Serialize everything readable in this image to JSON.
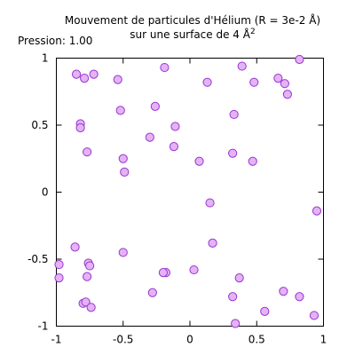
{
  "chart_data": {
    "type": "scatter",
    "title_line1": "Mouvement de particules d'Hélium (R = 3e-2 Å)",
    "title_line2_main": "sur une surface de 4 Å",
    "title_line2_sup": "2",
    "annotation": "Pression: 1.00",
    "xlim": [
      -1,
      1
    ],
    "ylim": [
      -1,
      1
    ],
    "x_ticks": [
      -1,
      -0.5,
      0,
      0.5,
      1
    ],
    "x_tick_labels": [
      "-1",
      "-0.5",
      "0",
      "0.5",
      "1"
    ],
    "y_ticks": [
      -1,
      -0.5,
      0,
      0.5,
      1
    ],
    "y_tick_labels": [
      "-1",
      "-0.5",
      "0",
      "0.5",
      "1"
    ],
    "grid": false,
    "marker": {
      "fill": "#e3b3f3",
      "stroke": "#9b34d3"
    },
    "x": [
      -0.85,
      -0.79,
      -0.72,
      -0.54,
      -0.19,
      0.13,
      0.39,
      0.66,
      0.71,
      0.82,
      0.73,
      0.48,
      -0.52,
      -0.26,
      -0.11,
      0.33,
      -0.82,
      -0.82,
      -0.3,
      -0.77,
      -0.12,
      -0.5,
      0.07,
      0.32,
      0.47,
      -0.49,
      0.15,
      0.95,
      -0.86,
      -0.5,
      0.17,
      -0.98,
      -0.76,
      -0.75,
      -0.18,
      -0.2,
      0.03,
      0.37,
      -0.98,
      -0.77,
      -0.28,
      0.32,
      0.7,
      0.82,
      -0.8,
      -0.78,
      -0.74,
      0.56,
      0.93,
      0.34
    ],
    "y": [
      0.88,
      0.85,
      0.88,
      0.84,
      0.93,
      0.82,
      0.94,
      0.85,
      0.81,
      0.99,
      0.73,
      0.82,
      0.61,
      0.64,
      0.49,
      0.58,
      0.51,
      0.48,
      0.41,
      0.3,
      0.34,
      0.25,
      0.23,
      0.29,
      0.23,
      0.15,
      -0.08,
      -0.14,
      -0.41,
      -0.45,
      -0.38,
      -0.54,
      -0.53,
      -0.55,
      -0.6,
      -0.6,
      -0.58,
      -0.64,
      -0.64,
      -0.63,
      -0.75,
      -0.78,
      -0.74,
      -0.78,
      -0.83,
      -0.82,
      -0.86,
      -0.89,
      -0.92,
      -0.98
    ]
  }
}
